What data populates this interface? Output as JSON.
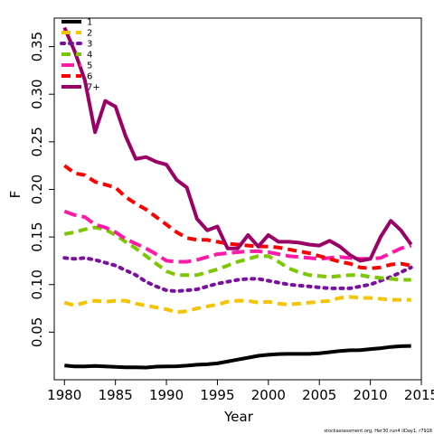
{
  "chart_data": {
    "type": "line",
    "xlabel": "Year",
    "ylabel": "F",
    "xlim": [
      1979,
      2015
    ],
    "ylim": [
      0.0,
      0.38
    ],
    "x_ticks": [
      1980,
      1985,
      1990,
      1995,
      2000,
      2005,
      2010,
      2015
    ],
    "y_ticks": [
      0.05,
      0.1,
      0.15,
      0.2,
      0.25,
      0.3,
      0.35
    ],
    "y_tick_labels": [
      "0.05",
      "0.10",
      "0.15",
      "0.20",
      "0.25",
      "0.30",
      "0.35"
    ],
    "legend_position": "top-left",
    "footer": "stockassessment.org, Her30 run4 iiDay1, r7918",
    "x": [
      1980,
      1981,
      1982,
      1983,
      1984,
      1985,
      1986,
      1987,
      1988,
      1989,
      1990,
      1991,
      1992,
      1993,
      1994,
      1995,
      1996,
      1997,
      1998,
      1999,
      2000,
      2001,
      2002,
      2003,
      2004,
      2005,
      2006,
      2007,
      2008,
      2009,
      2010,
      2011,
      2012,
      2013,
      2014
    ],
    "series": [
      {
        "name": "1",
        "color": "#000000",
        "dash": "solid",
        "values": [
          0.015,
          0.014,
          0.014,
          0.0145,
          0.014,
          0.0135,
          0.013,
          0.013,
          0.0128,
          0.0138,
          0.014,
          0.0142,
          0.0148,
          0.0158,
          0.0162,
          0.0172,
          0.0192,
          0.0212,
          0.0232,
          0.0252,
          0.0262,
          0.027,
          0.0272,
          0.0272,
          0.0272,
          0.0278,
          0.029,
          0.0302,
          0.031,
          0.0312,
          0.0322,
          0.0332,
          0.0345,
          0.0352,
          0.0355
        ]
      },
      {
        "name": "2",
        "color": "#f5c400",
        "dash": "dashed",
        "values": [
          0.081,
          0.078,
          0.081,
          0.083,
          0.082,
          0.083,
          0.083,
          0.08,
          0.078,
          0.076,
          0.074,
          0.071,
          0.072,
          0.075,
          0.077,
          0.079,
          0.082,
          0.083,
          0.083,
          0.081,
          0.082,
          0.08,
          0.079,
          0.08,
          0.081,
          0.082,
          0.083,
          0.086,
          0.087,
          0.086,
          0.086,
          0.085,
          0.084,
          0.084,
          0.084
        ]
      },
      {
        "name": "3",
        "color": "#7a0fa0",
        "dash": "dotted",
        "values": [
          0.128,
          0.127,
          0.128,
          0.126,
          0.123,
          0.12,
          0.115,
          0.11,
          0.103,
          0.098,
          0.094,
          0.093,
          0.094,
          0.095,
          0.098,
          0.101,
          0.103,
          0.105,
          0.106,
          0.106,
          0.104,
          0.102,
          0.1,
          0.099,
          0.098,
          0.097,
          0.096,
          0.096,
          0.096,
          0.098,
          0.1,
          0.104,
          0.108,
          0.113,
          0.118
        ]
      },
      {
        "name": "4",
        "color": "#7cc800",
        "dash": "dashed",
        "values": [
          0.153,
          0.155,
          0.158,
          0.16,
          0.158,
          0.152,
          0.145,
          0.138,
          0.13,
          0.122,
          0.114,
          0.11,
          0.11,
          0.11,
          0.113,
          0.116,
          0.12,
          0.124,
          0.127,
          0.13,
          0.13,
          0.124,
          0.117,
          0.113,
          0.11,
          0.109,
          0.108,
          0.109,
          0.11,
          0.11,
          0.108,
          0.107,
          0.106,
          0.105,
          0.105
        ]
      },
      {
        "name": "5",
        "color": "#ff1aa8",
        "dash": "longdash",
        "values": [
          0.177,
          0.173,
          0.171,
          0.163,
          0.16,
          0.155,
          0.148,
          0.143,
          0.138,
          0.132,
          0.125,
          0.124,
          0.124,
          0.126,
          0.129,
          0.132,
          0.133,
          0.134,
          0.135,
          0.135,
          0.134,
          0.132,
          0.13,
          0.129,
          0.128,
          0.127,
          0.128,
          0.129,
          0.128,
          0.127,
          0.127,
          0.128,
          0.133,
          0.138,
          0.141
        ]
      },
      {
        "name": "6",
        "color": "#ff0000",
        "dash": "dashed",
        "values": [
          0.225,
          0.217,
          0.215,
          0.208,
          0.205,
          0.202,
          0.192,
          0.185,
          0.179,
          0.171,
          0.163,
          0.155,
          0.149,
          0.147,
          0.147,
          0.145,
          0.143,
          0.142,
          0.141,
          0.14,
          0.14,
          0.139,
          0.137,
          0.135,
          0.133,
          0.13,
          0.127,
          0.124,
          0.122,
          0.118,
          0.117,
          0.118,
          0.121,
          0.122,
          0.12
        ]
      },
      {
        "name": "7+",
        "color": "#9a0066",
        "dash": "solid",
        "values": [
          0.37,
          0.345,
          0.315,
          0.26,
          0.293,
          0.287,
          0.256,
          0.232,
          0.234,
          0.229,
          0.226,
          0.21,
          0.202,
          0.169,
          0.157,
          0.161,
          0.138,
          0.138,
          0.152,
          0.14,
          0.152,
          0.145,
          0.145,
          0.144,
          0.142,
          0.141,
          0.146,
          0.14,
          0.131,
          0.125,
          0.127,
          0.15,
          0.167,
          0.157,
          0.142
        ]
      }
    ]
  }
}
